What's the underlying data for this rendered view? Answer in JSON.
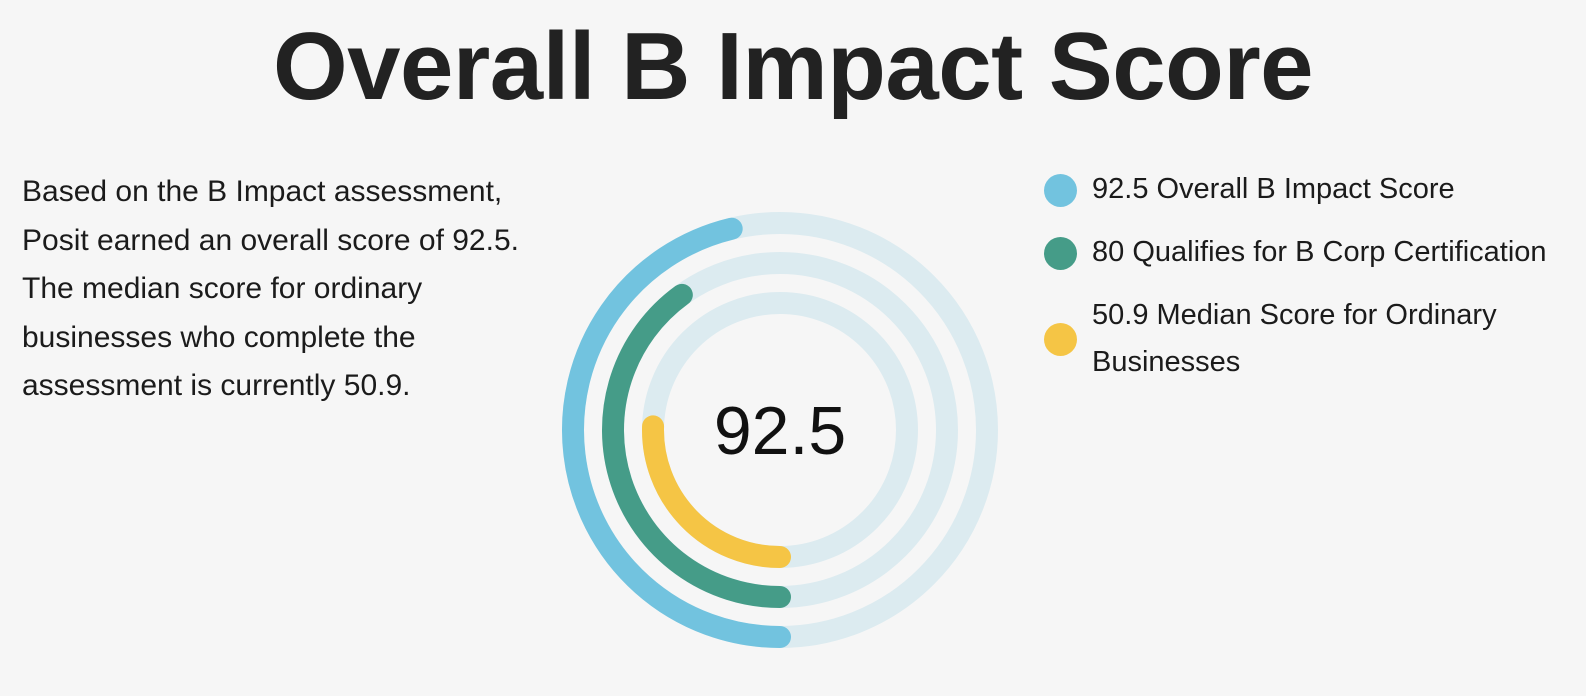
{
  "title": "Overall B Impact Score",
  "description": "Based on the B Impact assessment, Posit earned an overall score of 92.5. The median score for ordinary businesses who complete the assessment is currently 50.9.",
  "chart_data": {
    "type": "radial-bar",
    "center_label": "92.5",
    "value_range": [
      0,
      200
    ],
    "start_angle": "bottom",
    "direction": "clockwise",
    "track_color": "#dcebf0",
    "series": [
      {
        "name": "Overall B Impact Score",
        "value": 92.5,
        "color": "#72c3df"
      },
      {
        "name": "Qualifies for B Corp Certification",
        "value": 80,
        "color": "#459c88"
      },
      {
        "name": "Median Score for Ordinary Businesses",
        "value": 50.9,
        "color": "#f5c545"
      }
    ]
  },
  "legend": [
    {
      "label": "92.5 Overall B Impact Score",
      "color": "#72c3df"
    },
    {
      "label": "80 Qualifies for B Corp Certification",
      "color": "#459c88"
    },
    {
      "label": "50.9 Median Score for Ordinary Businesses",
      "color": "#f5c545"
    }
  ]
}
